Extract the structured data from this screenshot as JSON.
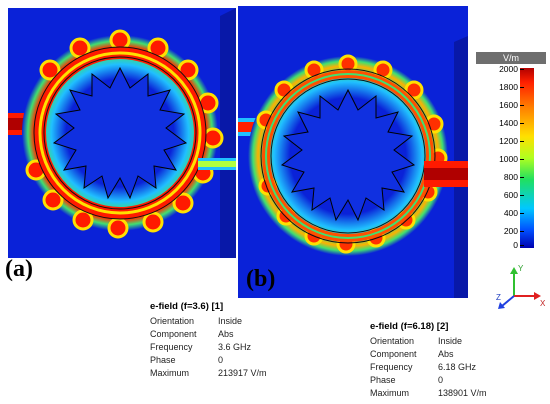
{
  "panels": {
    "a": {
      "letter": "(a)",
      "title": "e-field (f=3.6) [1]",
      "rows": [
        {
          "key": "Orientation",
          "value": "Inside"
        },
        {
          "key": "Component",
          "value": "Abs"
        },
        {
          "key": "Frequency",
          "value": "3.6 GHz"
        },
        {
          "key": "Phase",
          "value": "0"
        },
        {
          "key": "Maximum",
          "value": "213917 V/m"
        }
      ]
    },
    "b": {
      "letter": "(b)",
      "title": "e-field (f=6.18) [2]",
      "rows": [
        {
          "key": "Orientation",
          "value": "Inside"
        },
        {
          "key": "Component",
          "value": "Abs"
        },
        {
          "key": "Frequency",
          "value": "6.18 GHz"
        },
        {
          "key": "Phase",
          "value": "0"
        },
        {
          "key": "Maximum",
          "value": "138901 V/m"
        }
      ]
    }
  },
  "legend": {
    "unit": "V/m",
    "ticks": [
      "2000",
      "1800",
      "1600",
      "1400",
      "1200",
      "1000",
      "800",
      "600",
      "400",
      "200",
      "0"
    ]
  },
  "axes": {
    "x": "X",
    "y": "Y",
    "z": "Z"
  },
  "colors": {
    "substrate": "#0a22d8",
    "hot": "#ff1a00",
    "warm": "#ffe000",
    "green": "#20d080",
    "cyan": "#00c8ff"
  }
}
